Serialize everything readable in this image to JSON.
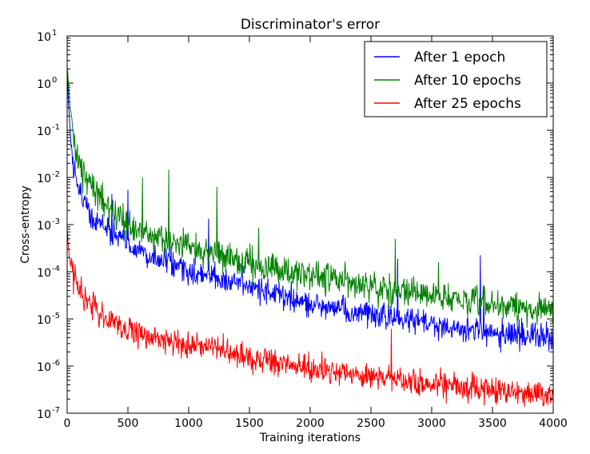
{
  "chart_data": {
    "type": "line",
    "title": "Discriminator's error",
    "xlabel": "Training iterations",
    "ylabel": "Cross-entropy",
    "xlim": [
      0,
      4000
    ],
    "ylim": [
      1e-07,
      10
    ],
    "yscale": "log",
    "x_ticks": [
      "0",
      "500",
      "1000",
      "1500",
      "2000",
      "2500",
      "3000",
      "3500",
      "4000"
    ],
    "y_ticks": [
      {
        "base": "10",
        "exp": "1",
        "value": 10
      },
      {
        "base": "10",
        "exp": "0",
        "value": 1
      },
      {
        "base": "10",
        "exp": "-1",
        "value": 0.1
      },
      {
        "base": "10",
        "exp": "-2",
        "value": 0.01
      },
      {
        "base": "10",
        "exp": "-3",
        "value": 0.001
      },
      {
        "base": "10",
        "exp": "-4",
        "value": 0.0001
      },
      {
        "base": "10",
        "exp": "-5",
        "value": 1e-05
      },
      {
        "base": "10",
        "exp": "-6",
        "value": 1e-06
      },
      {
        "base": "10",
        "exp": "-7",
        "value": 1e-07
      }
    ],
    "grid": false,
    "legend_position": "top-right",
    "series": [
      {
        "name": "After 1 epoch",
        "color": "#0000ff",
        "x": [
          0,
          10,
          25,
          50,
          100,
          150,
          200,
          300,
          400,
          500,
          700,
          1000,
          1500,
          2000,
          2500,
          3000,
          3500,
          4000
        ],
        "y": [
          2,
          0.5,
          0.08,
          0.02,
          0.005,
          0.003,
          0.0015,
          0.001,
          0.0006,
          0.0004,
          0.0002,
          0.0001,
          5e-05,
          2e-05,
          1.2e-05,
          8e-06,
          5e-06,
          4e-06
        ]
      },
      {
        "name": "After 10 epochs",
        "color": "#008000",
        "x": [
          0,
          10,
          25,
          50,
          100,
          150,
          200,
          300,
          400,
          500,
          700,
          1000,
          1500,
          2000,
          2500,
          3000,
          3500,
          4000
        ],
        "y": [
          2,
          1,
          0.3,
          0.08,
          0.02,
          0.01,
          0.006,
          0.003,
          0.0015,
          0.001,
          0.0006,
          0.00035,
          0.00015,
          8e-05,
          5e-05,
          3e-05,
          2e-05,
          1.5e-05
        ]
      },
      {
        "name": "After 25 epochs",
        "color": "#ff0000",
        "x": [
          0,
          10,
          25,
          50,
          100,
          150,
          200,
          300,
          400,
          500,
          700,
          1000,
          1500,
          2000,
          2500,
          3000,
          3500,
          4000
        ],
        "y": [
          0.0008,
          0.0004,
          0.00015,
          8e-05,
          4e-05,
          3e-05,
          2e-05,
          1.2e-05,
          8e-06,
          6e-06,
          4e-06,
          3e-06,
          1.5e-06,
          9e-07,
          6e-07,
          4e-07,
          3e-07,
          2.5e-07
        ]
      }
    ]
  }
}
